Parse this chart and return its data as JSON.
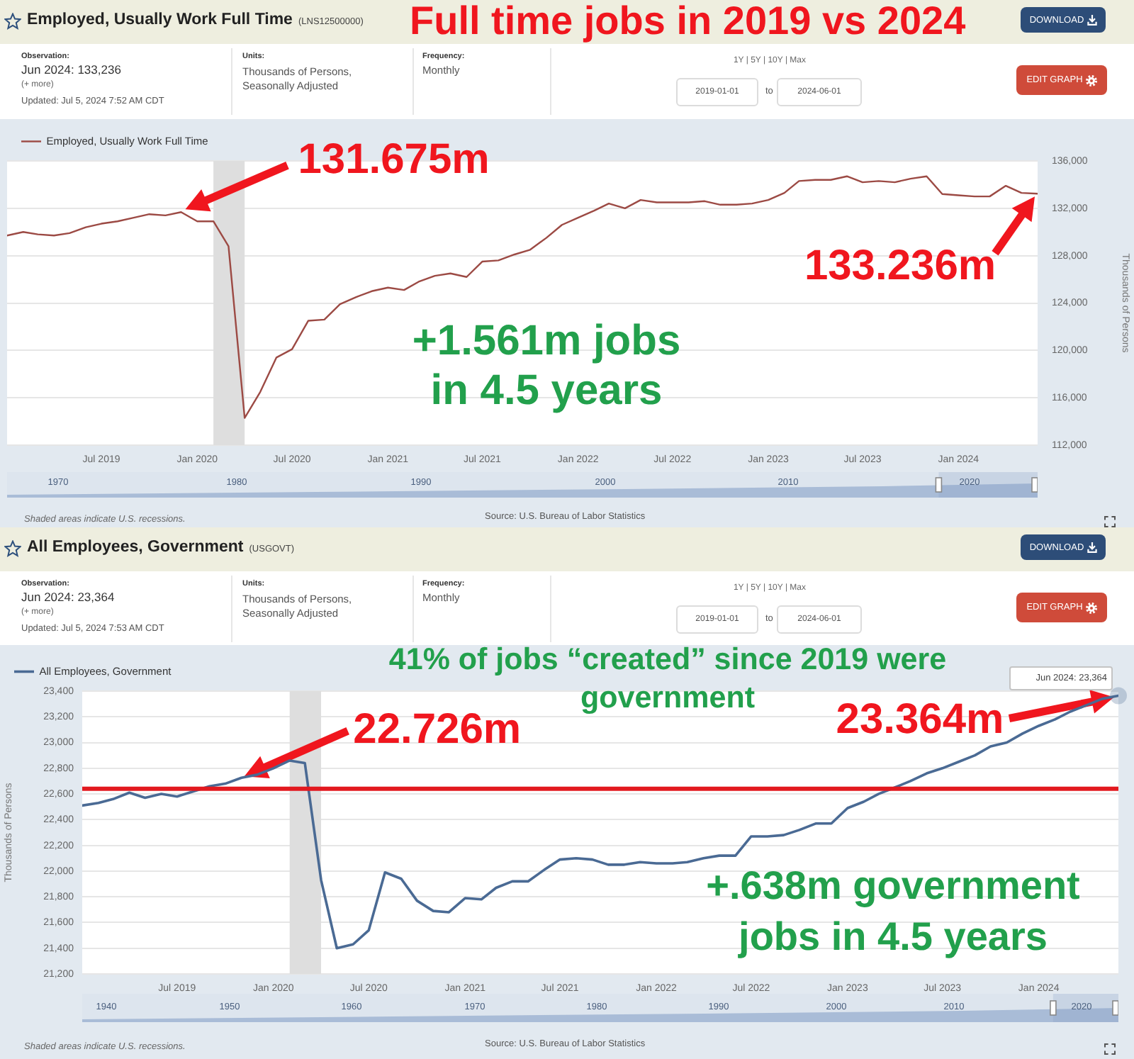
{
  "chart_data": [
    {
      "type": "line",
      "title": "Employed, Usually Work Full Time",
      "subtitle": "(LNS12500000)",
      "ylabel": "Thousands of Persons",
      "x": [
        "2019-01",
        "2019-02",
        "2019-03",
        "2019-04",
        "2019-05",
        "2019-06",
        "2019-07",
        "2019-08",
        "2019-09",
        "2019-10",
        "2019-11",
        "2019-12",
        "2020-01",
        "2020-02",
        "2020-03",
        "2020-04",
        "2020-05",
        "2020-06",
        "2020-07",
        "2020-08",
        "2020-09",
        "2020-10",
        "2020-11",
        "2020-12",
        "2021-01",
        "2021-02",
        "2021-03",
        "2021-04",
        "2021-05",
        "2021-06",
        "2021-07",
        "2021-08",
        "2021-09",
        "2021-10",
        "2021-11",
        "2021-12",
        "2022-01",
        "2022-02",
        "2022-03",
        "2022-04",
        "2022-05",
        "2022-06",
        "2022-07",
        "2022-08",
        "2022-09",
        "2022-10",
        "2022-11",
        "2022-12",
        "2023-01",
        "2023-02",
        "2023-03",
        "2023-04",
        "2023-05",
        "2023-06",
        "2023-07",
        "2023-08",
        "2023-09",
        "2023-10",
        "2023-11",
        "2023-12",
        "2024-01",
        "2024-02",
        "2024-03",
        "2024-04",
        "2024-05",
        "2024-06"
      ],
      "series": [
        {
          "name": "Employed, Usually Work Full Time",
          "color": "#9c4a44",
          "values": [
            129700,
            130000,
            129800,
            129700,
            129900,
            130400,
            130700,
            130900,
            131200,
            131500,
            131400,
            131675,
            130900,
            130900,
            128800,
            114300,
            116500,
            119400,
            120100,
            122500,
            122600,
            123900,
            124500,
            125000,
            125300,
            125100,
            125800,
            126300,
            126500,
            126200,
            127500,
            127600,
            128100,
            128500,
            129500,
            130600,
            131200,
            131800,
            132400,
            132000,
            132700,
            132500,
            132500,
            132500,
            132600,
            132300,
            132300,
            132400,
            132700,
            133300,
            134300,
            134400,
            134400,
            134700,
            134200,
            134300,
            134200,
            134500,
            134700,
            133200,
            133100,
            133000,
            133000,
            133900,
            133300,
            133236
          ]
        }
      ],
      "xlim": [
        "2019-01",
        "2024-06"
      ],
      "xticks": [
        {
          "value": "2019-07",
          "label": "Jul 2019"
        },
        {
          "value": "2020-01",
          "label": "Jan 2020"
        },
        {
          "value": "2020-07",
          "label": "Jul 2020"
        },
        {
          "value": "2021-01",
          "label": "Jan 2021"
        },
        {
          "value": "2021-07",
          "label": "Jul 2021"
        },
        {
          "value": "2022-01",
          "label": "Jan 2022"
        },
        {
          "value": "2022-07",
          "label": "Jul 2022"
        },
        {
          "value": "2023-01",
          "label": "Jan 2023"
        },
        {
          "value": "2023-07",
          "label": "Jul 2023"
        },
        {
          "value": "2024-01",
          "label": "Jan 2024"
        }
      ],
      "ylim": [
        112000,
        136000
      ],
      "yticks": [
        {
          "value": 112000,
          "label": "112,000"
        },
        {
          "value": 116000,
          "label": "116,000"
        },
        {
          "value": 120000,
          "label": "120,000"
        },
        {
          "value": 124000,
          "label": "124,000"
        },
        {
          "value": 128000,
          "label": "128,000"
        },
        {
          "value": 132000,
          "label": "132,000"
        },
        {
          "value": 136000,
          "label": "136,000"
        }
      ],
      "grid": "y",
      "legend": "top left",
      "bands": [
        {
          "axis": "x",
          "from": "2020-02",
          "to": "2020-04",
          "color": "#dedede"
        }
      ],
      "annotations": [
        "Observation:",
        "Jun 2024: 133,236",
        "(+ more)",
        "Updated: Jul 5, 2024 7:52 AM CDT",
        "Units:",
        "Thousands of Persons, Seasonally Adjusted",
        "Frequency:",
        "Monthly",
        "1Y | 5Y | 10Y | Max",
        "2019-01-01",
        "to",
        "2024-06-01",
        "DOWNLOAD",
        "EDIT GRAPH",
        "Shaded areas indicate U.S. recessions.",
        "Source: U.S. Bureau of Labor Statistics",
        "Full time jobs in 2019 vs 2024",
        {
          "text": "131.675m",
          "x": "2019-12",
          "y": 131675
        },
        {
          "text": "133.236m",
          "x": "2024-06",
          "y": 133236
        },
        "+1.561m jobs in 4.5 years",
        "1970",
        "1980",
        "1990",
        "2000",
        "2010",
        "2020"
      ]
    },
    {
      "type": "line",
      "title": "All Employees, Government",
      "subtitle": "(USGOVT)",
      "ylabel": "Thousands of Persons",
      "x": [
        "2019-01",
        "2019-02",
        "2019-03",
        "2019-04",
        "2019-05",
        "2019-06",
        "2019-07",
        "2019-08",
        "2019-09",
        "2019-10",
        "2019-11",
        "2019-12",
        "2020-01",
        "2020-02",
        "2020-03",
        "2020-04",
        "2020-05",
        "2020-06",
        "2020-07",
        "2020-08",
        "2020-09",
        "2020-10",
        "2020-11",
        "2020-12",
        "2021-01",
        "2021-02",
        "2021-03",
        "2021-04",
        "2021-05",
        "2021-06",
        "2021-07",
        "2021-08",
        "2021-09",
        "2021-10",
        "2021-11",
        "2021-12",
        "2022-01",
        "2022-02",
        "2022-03",
        "2022-04",
        "2022-05",
        "2022-06",
        "2022-07",
        "2022-08",
        "2022-09",
        "2022-10",
        "2022-11",
        "2022-12",
        "2023-01",
        "2023-02",
        "2023-03",
        "2023-04",
        "2023-05",
        "2023-06",
        "2023-07",
        "2023-08",
        "2023-09",
        "2023-10",
        "2023-11",
        "2023-12",
        "2024-01",
        "2024-02",
        "2024-03",
        "2024-04",
        "2024-05",
        "2024-06"
      ],
      "series": [
        {
          "name": "All Employees, Government",
          "color": "#4a6a94",
          "values": [
            22510,
            22530,
            22560,
            22610,
            22570,
            22600,
            22580,
            22620,
            22660,
            22680,
            22726,
            22750,
            22800,
            22860,
            22840,
            21930,
            21400,
            21430,
            21540,
            21990,
            21940,
            21770,
            21690,
            21680,
            21790,
            21780,
            21870,
            21920,
            21920,
            22010,
            22090,
            22100,
            22090,
            22050,
            22050,
            22070,
            22060,
            22060,
            22070,
            22100,
            22120,
            22120,
            22270,
            22270,
            22280,
            22320,
            22370,
            22370,
            22490,
            22540,
            22600,
            22650,
            22700,
            22760,
            22800,
            22850,
            22900,
            22970,
            23000,
            23070,
            23130,
            23180,
            23240,
            23290,
            23340,
            23364
          ]
        }
      ],
      "xlim": [
        "2019-01",
        "2024-06"
      ],
      "xticks": [
        {
          "value": "2019-07",
          "label": "Jul 2019"
        },
        {
          "value": "2020-01",
          "label": "Jan 2020"
        },
        {
          "value": "2020-07",
          "label": "Jul 2020"
        },
        {
          "value": "2021-01",
          "label": "Jan 2021"
        },
        {
          "value": "2021-07",
          "label": "Jul 2021"
        },
        {
          "value": "2022-01",
          "label": "Jan 2022"
        },
        {
          "value": "2022-07",
          "label": "Jul 2022"
        },
        {
          "value": "2023-01",
          "label": "Jan 2023"
        },
        {
          "value": "2023-07",
          "label": "Jul 2023"
        },
        {
          "value": "2024-01",
          "label": "Jan 2024"
        }
      ],
      "ylim": [
        21200,
        23400
      ],
      "yticks": [
        {
          "value": 21200,
          "label": "21,200"
        },
        {
          "value": 21400,
          "label": "21,400"
        },
        {
          "value": 21600,
          "label": "21,600"
        },
        {
          "value": 21800,
          "label": "21,800"
        },
        {
          "value": 22000,
          "label": "22,000"
        },
        {
          "value": 22200,
          "label": "22,200"
        },
        {
          "value": 22400,
          "label": "22,400"
        },
        {
          "value": 22600,
          "label": "22,600"
        },
        {
          "value": 22800,
          "label": "22,800"
        },
        {
          "value": 23000,
          "label": "23,000"
        },
        {
          "value": 23200,
          "label": "23,200"
        },
        {
          "value": 23400,
          "label": "23,400"
        }
      ],
      "grid": "y",
      "legend": "top left",
      "bands": [
        {
          "axis": "x",
          "from": "2020-02",
          "to": "2020-04",
          "color": "#dedede"
        }
      ],
      "ref_lines": [
        {
          "axis": "y",
          "value": 22640,
          "color": "#e2191f"
        }
      ],
      "annotations": [
        "Observation:",
        "Jun 2024: 23,364",
        "(+ more)",
        "Updated: Jul 5, 2024 7:53 AM CDT",
        "Units:",
        "Thousands of Persons, Seasonally Adjusted",
        "Frequency:",
        "Monthly",
        "1Y | 5Y | 10Y | Max",
        "2019-01-01",
        "to",
        "2024-06-01",
        "DOWNLOAD",
        "EDIT GRAPH",
        "Shaded areas indicate U.S. recessions.",
        "Source: U.S. Bureau of Labor Statistics",
        "41% of jobs “created” since 2019 were government",
        {
          "text": "22.726m",
          "x": "2019-11",
          "y": 22726
        },
        {
          "text": "23.364m",
          "x": "2024-06",
          "y": 23364
        },
        {
          "text": "Jun 2024: 23,364",
          "x": "2024-06",
          "y": 23364
        },
        "+.638m government jobs in 4.5 years",
        "1940",
        "1950",
        "1960",
        "1970",
        "1980",
        "1990",
        "2000",
        "2010",
        "2020"
      ]
    }
  ]
}
